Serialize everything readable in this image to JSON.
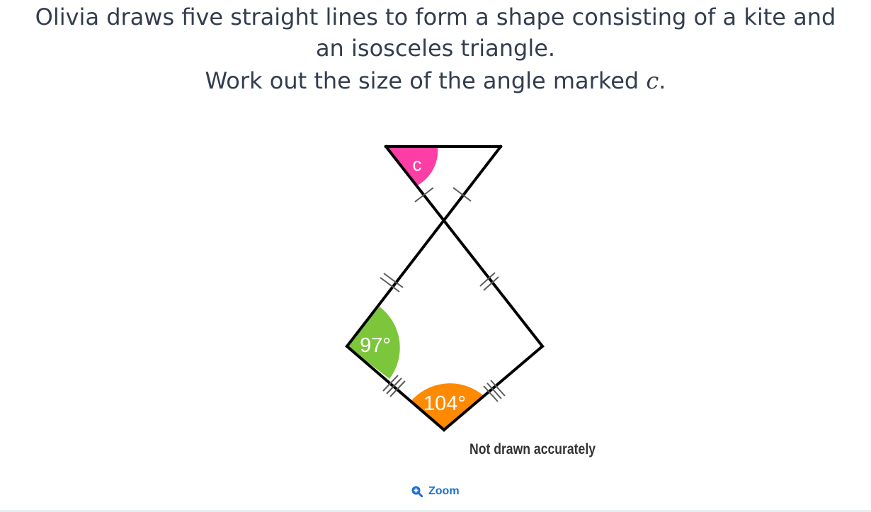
{
  "question": {
    "line1": "Olivia draws five straight lines to form a shape consisting of a kite and",
    "line1b": "an isosceles triangle.",
    "line2_pre": "Work out the size of the angle marked ",
    "line2_var": "c",
    "line2_post": "."
  },
  "diagram": {
    "angle_c_label": "c",
    "angle_left_label": "97°",
    "angle_bottom_label": "104°",
    "note": "Not drawn accurately",
    "colors": {
      "angle_c": "#ff3ea5",
      "angle_left": "#7bc63a",
      "angle_bottom": "#ff8a00",
      "lines": "#000000",
      "ticks": "#555555"
    }
  },
  "zoom": {
    "label": "Zoom",
    "icon": "zoom-in-icon"
  }
}
